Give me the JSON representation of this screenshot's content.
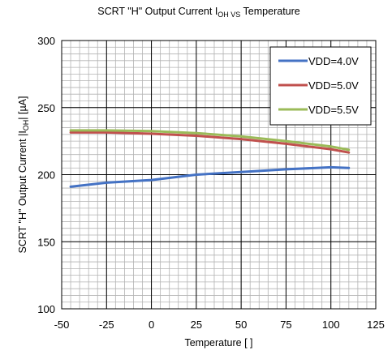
{
  "chart_data": {
    "type": "line",
    "title": {
      "prefix": "SCRT \"H\" Output Current I",
      "sub": "OH VS",
      "suffix": " Temperature"
    },
    "xlabel": "Temperature [    ]",
    "ylabel": {
      "prefix": "SCRT \"H\" Output Current  |I",
      "sub": "OH",
      "suffix": "|  [µA]"
    },
    "xlim": [
      -50,
      125
    ],
    "ylim": [
      100,
      300
    ],
    "x_ticks": [
      -50,
      -25,
      0,
      25,
      50,
      75,
      100,
      125
    ],
    "y_ticks": [
      100,
      150,
      200,
      250,
      300
    ],
    "grid": true,
    "legend_position": "top-right",
    "series": [
      {
        "name": "VDD=4.0V",
        "color": "#4472C4",
        "x": [
          -45,
          -25,
          0,
          25,
          50,
          75,
          100,
          110
        ],
        "y": [
          191,
          194,
          196,
          200,
          202,
          204,
          205.5,
          205
        ]
      },
      {
        "name": "VDD=5.0V",
        "color": "#C0504D",
        "x": [
          -45,
          -25,
          0,
          25,
          50,
          75,
          100,
          110
        ],
        "y": [
          231.5,
          231.5,
          230.5,
          229,
          226.5,
          223,
          219,
          216.5
        ]
      },
      {
        "name": "VDD=5.5V",
        "color": "#9BBB59",
        "x": [
          -45,
          -25,
          0,
          25,
          50,
          75,
          100,
          110
        ],
        "y": [
          233,
          233,
          232.5,
          231,
          228.5,
          225,
          221,
          218.5
        ]
      }
    ]
  }
}
